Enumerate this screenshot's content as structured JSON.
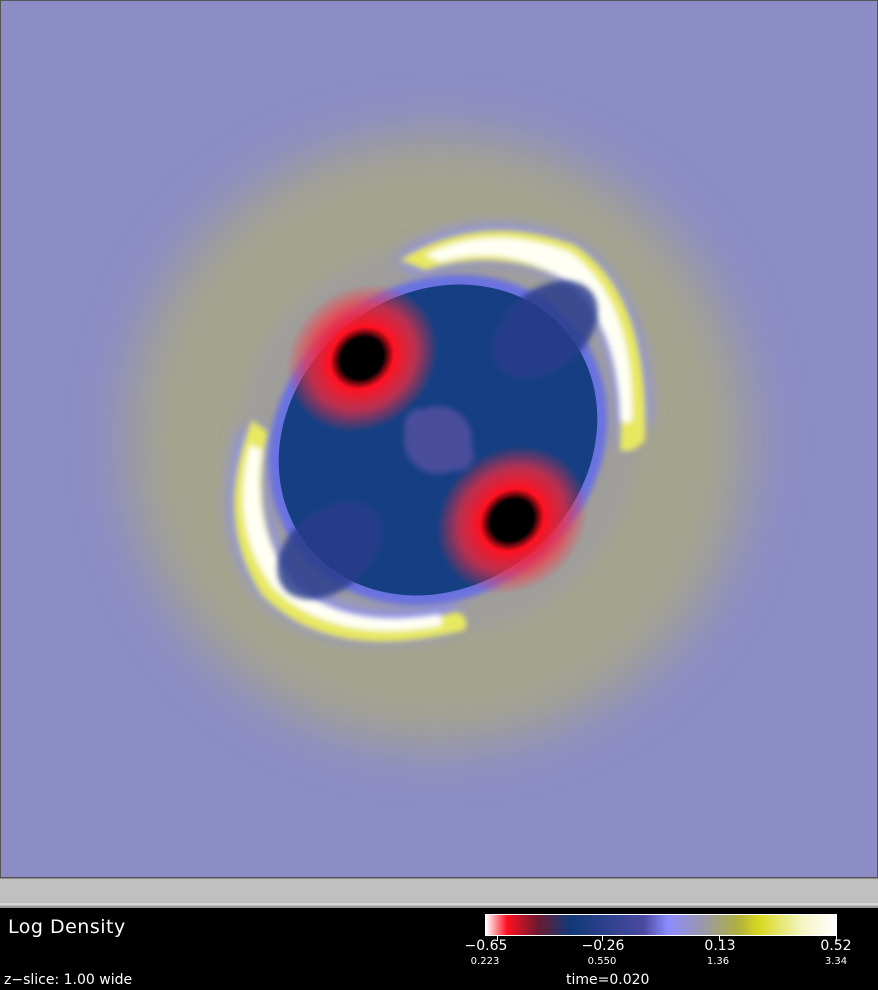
{
  "viewer": {
    "field_title": "Log Density",
    "slice_text": "z−slice: 1.00  wide",
    "time_text": "time=0.020"
  },
  "colorbar": {
    "tick_labels": [
      "−0.65",
      "−0.26",
      "0.13",
      "0.52"
    ],
    "sub_labels": [
      "0.223",
      "0.550",
      "1.36",
      "3.34"
    ]
  },
  "colors": {
    "background": "#8c8cc6",
    "outer_ring": "#a5a38c",
    "core": "#123f80",
    "hot": "#ff1a30",
    "shell": "#fffff0"
  }
}
